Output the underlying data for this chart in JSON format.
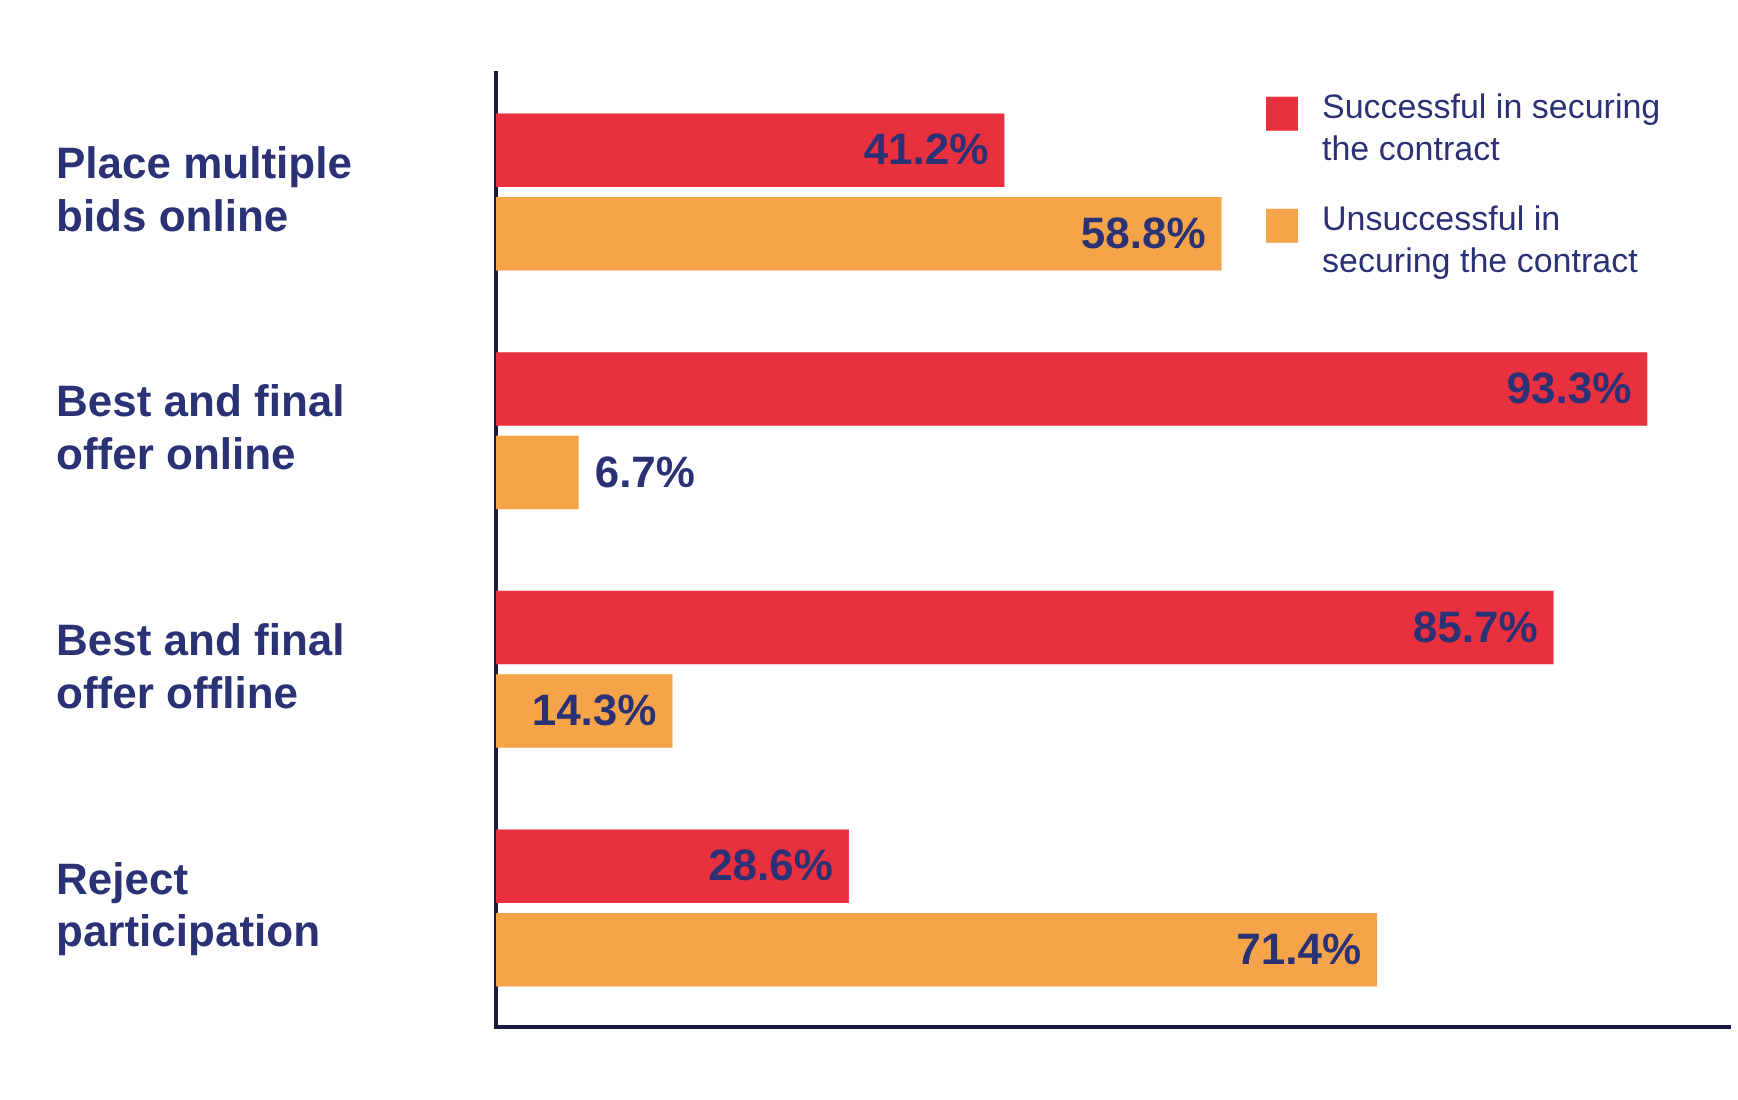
{
  "chart_data": {
    "type": "bar",
    "orientation": "horizontal",
    "categories": [
      "Place multiple bids online",
      "Best and final offer online",
      "Best and final offer offline",
      "Reject participation"
    ],
    "series": [
      {
        "name": "Successful in securing the contract",
        "color": "#e8303f",
        "values": [
          41.2,
          93.3,
          85.7,
          28.6
        ],
        "value_labels": [
          "41.2%",
          "93.3%",
          "85.7%",
          "28.6%"
        ]
      },
      {
        "name": "Unsuccessful in securing the contract",
        "color": "#f5a44a",
        "values": [
          58.8,
          6.7,
          14.3,
          71.4
        ],
        "value_labels": [
          "58.8%",
          "6.7%",
          "14.3%",
          "71.4%"
        ]
      }
    ],
    "tick_labels": "y",
    "grid": false,
    "legend": "top right"
  }
}
